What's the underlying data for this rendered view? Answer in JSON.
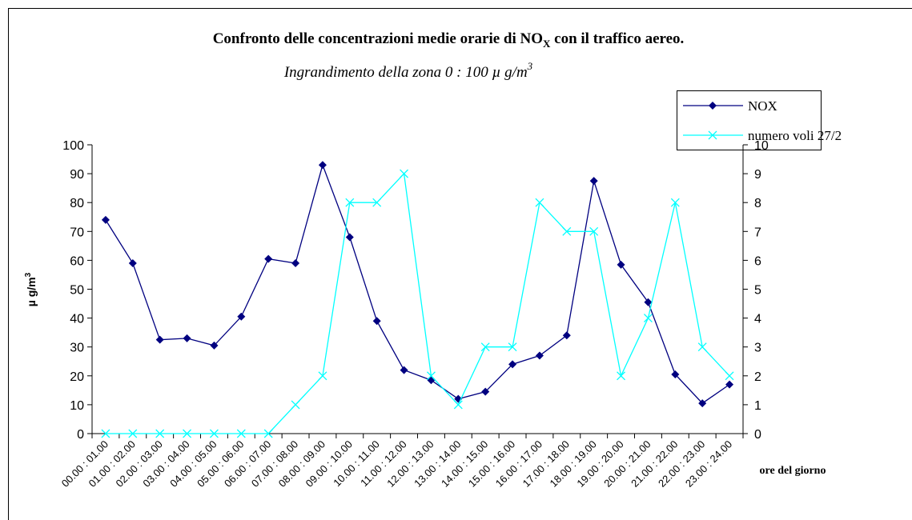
{
  "chart_data": {
    "type": "line",
    "title": [
      "Confronto delle concentrazioni medie orarie di NO",
      "X",
      " con il traffico aereo."
    ],
    "subtitle": [
      "Ingrandimento della zona 0 : 100  µ g/m",
      "3"
    ],
    "y_label": [
      "µ g/m",
      "3"
    ],
    "x_label": "ore del giorno",
    "categories": [
      "00.00 : 01.00",
      "01.00 : 02.00",
      "02.00 : 03.00",
      "03.00 : 04.00",
      "04.00 : 05.00",
      "05.00 : 06.00",
      "06.00 : 07.00",
      "07.00 : 08.00",
      "08.00 : 09.00",
      "09.00 : 10.00",
      "10.00 : 11.00",
      "11.00 : 12.00",
      "12.00 : 13.00",
      "13.00 : 14.00",
      "14.00 : 15.00",
      "15.00 : 16.00",
      "16.00 : 17.00",
      "17.00 : 18.00",
      "18.00 : 19.00",
      "19.00 : 20.00",
      "20.00 : 21.00",
      "21.00 : 22.00",
      "22.00 : 23.00",
      "23.00 : 24.00"
    ],
    "series": [
      {
        "name": "NOX",
        "color": "#000080",
        "marker": "diamond",
        "values": [
          74,
          59,
          32.5,
          33,
          30.5,
          40.5,
          60.5,
          59,
          93,
          68,
          39,
          22,
          18.5,
          12,
          14.5,
          24,
          27,
          34,
          87.5,
          58.5,
          45.5,
          20.5,
          10.5,
          17
        ]
      },
      {
        "name": "numero voli 27/2",
        "color": "#00FFFF",
        "marker": "x",
        "axis": "y2",
        "values": [
          0,
          0,
          0,
          0,
          0,
          0,
          0,
          1,
          2,
          8,
          8,
          9,
          2,
          1,
          3,
          3,
          8,
          7,
          7,
          2,
          4,
          8,
          3,
          2
        ]
      }
    ],
    "ylim": [
      0,
      100
    ],
    "yticks": [
      0,
      10,
      20,
      30,
      40,
      50,
      60,
      70,
      80,
      90,
      100
    ],
    "y2lim": [
      0,
      10
    ],
    "y2ticks": [
      0,
      1,
      2,
      3,
      4,
      5,
      6,
      7,
      8,
      9,
      10
    ],
    "legend": "top-right"
  }
}
